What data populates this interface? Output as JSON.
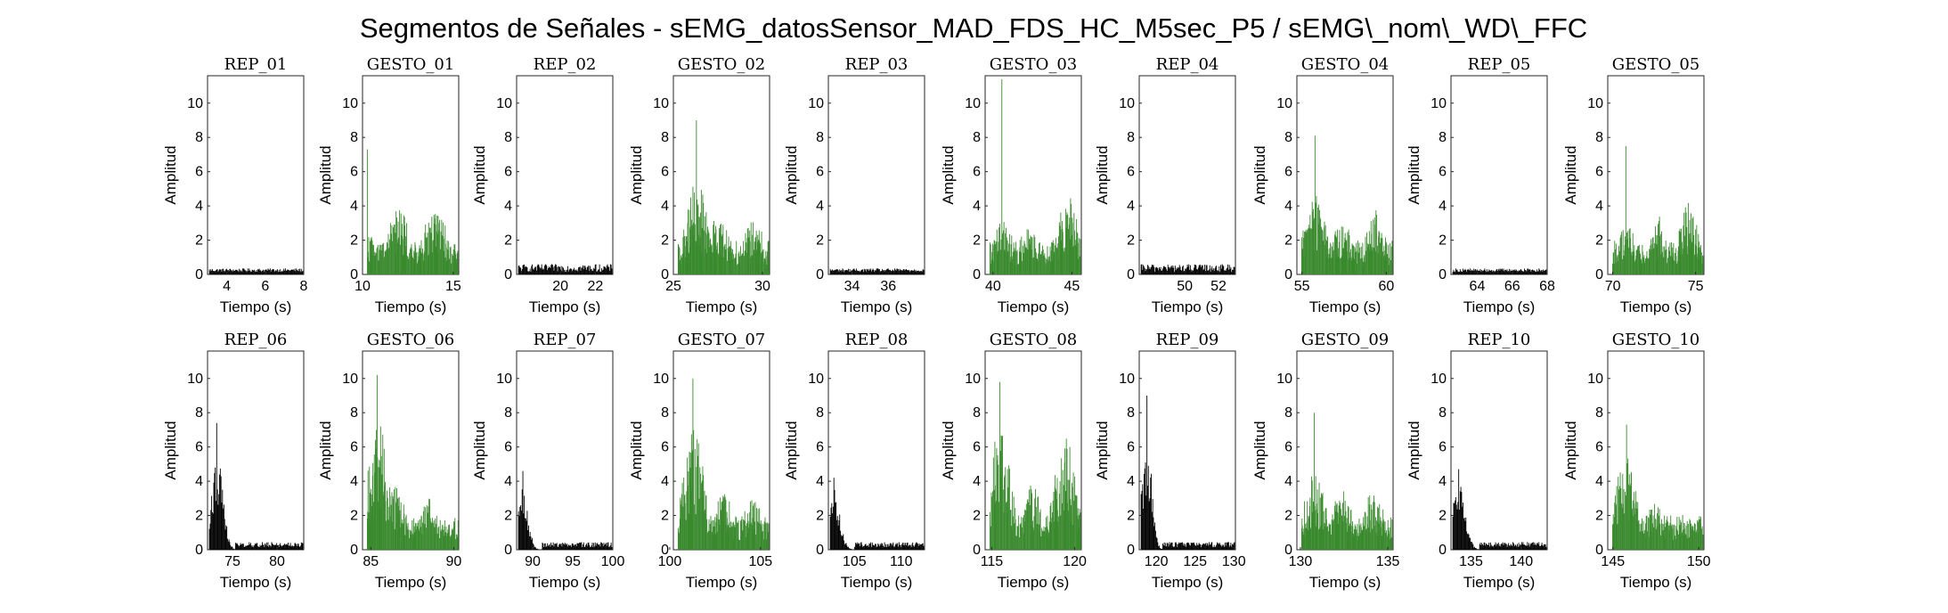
{
  "figure": {
    "title": "Segmentos de Señales - sEMG_datosSensor_MAD_FDS_HC_M5sec_P5 / sEMG\\_nom\\_WD\\_FFC"
  },
  "colors": {
    "rep": "#000000",
    "gesto": "#3a8a2e",
    "axes": "#262626",
    "background": "#ffffff"
  },
  "chart_data": [
    {
      "type": "bar",
      "title": "REP_01",
      "kind": "rep",
      "xlabel": "Tiempo (s)",
      "ylabel": "Amplitud",
      "xlim": [
        3,
        8
      ],
      "ylim": [
        0,
        11.6
      ],
      "xticks": [
        4,
        6,
        8
      ],
      "yticks": [
        0,
        2,
        4,
        6,
        8,
        10
      ],
      "envelope": {
        "bursts": [],
        "base": 0.15,
        "baseMax": 0.35
      }
    },
    {
      "type": "bar",
      "title": "GESTO_01",
      "kind": "gesto",
      "xlabel": "Tiempo (s)",
      "ylabel": "Amplitud",
      "xlim": [
        10,
        15.3
      ],
      "ylim": [
        0,
        11.6
      ],
      "xticks": [
        10,
        15
      ],
      "yticks": [
        0,
        2,
        4,
        6,
        8,
        10
      ],
      "envelope": {
        "bursts": [
          [
            10.3,
            2.0
          ],
          [
            12.0,
            3.2
          ],
          [
            14.0,
            3.4
          ]
        ],
        "base": 0.1,
        "peak": 7.3
      }
    },
    {
      "type": "bar",
      "title": "REP_02",
      "kind": "rep",
      "xlabel": "Tiempo (s)",
      "ylabel": "Amplitud",
      "xlim": [
        17.5,
        23
      ],
      "ylim": [
        0,
        11.6
      ],
      "xticks": [
        20,
        22
      ],
      "yticks": [
        0,
        2,
        4,
        6,
        8,
        10
      ],
      "envelope": {
        "bursts": [],
        "base": 0.15,
        "baseMax": 0.6
      }
    },
    {
      "type": "bar",
      "title": "GESTO_02",
      "kind": "gesto",
      "xlabel": "Tiempo (s)",
      "ylabel": "Amplitud",
      "xlim": [
        25,
        30.4
      ],
      "ylim": [
        0,
        11.6
      ],
      "xticks": [
        25,
        30
      ],
      "yticks": [
        0,
        2,
        4,
        6,
        8,
        10
      ],
      "envelope": {
        "bursts": [
          [
            26.3,
            4.4
          ],
          [
            27.5,
            2.8
          ],
          [
            29.5,
            2.6
          ]
        ],
        "base": 0.1,
        "peak": 9.0
      }
    },
    {
      "type": "bar",
      "title": "REP_03",
      "kind": "rep",
      "xlabel": "Tiempo (s)",
      "ylabel": "Amplitud",
      "xlim": [
        32.7,
        38
      ],
      "ylim": [
        0,
        11.6
      ],
      "xticks": [
        34,
        36
      ],
      "yticks": [
        0,
        2,
        4,
        6,
        8,
        10
      ],
      "envelope": {
        "bursts": [],
        "base": 0.15,
        "baseMax": 0.35
      }
    },
    {
      "type": "bar",
      "title": "GESTO_03",
      "kind": "gesto",
      "xlabel": "Tiempo (s)",
      "ylabel": "Amplitud",
      "xlim": [
        39.5,
        45.6
      ],
      "ylim": [
        0,
        11.6
      ],
      "xticks": [
        40,
        45
      ],
      "yticks": [
        0,
        2,
        4,
        6,
        8,
        10
      ],
      "envelope": {
        "bursts": [
          [
            40.6,
            2.8
          ],
          [
            42.3,
            2.6
          ],
          [
            44.8,
            4.0
          ]
        ],
        "base": 0.1,
        "peak": 11.4
      }
    },
    {
      "type": "bar",
      "title": "REP_04",
      "kind": "rep",
      "xlabel": "Tiempo (s)",
      "ylabel": "Amplitud",
      "xlim": [
        47.3,
        53
      ],
      "ylim": [
        0,
        11.6
      ],
      "xticks": [
        50,
        52
      ],
      "yticks": [
        0,
        2,
        4,
        6,
        8,
        10
      ],
      "envelope": {
        "bursts": [],
        "base": 0.15,
        "baseMax": 0.6
      }
    },
    {
      "type": "bar",
      "title": "GESTO_04",
      "kind": "gesto",
      "xlabel": "Tiempo (s)",
      "ylabel": "Amplitud",
      "xlim": [
        54.7,
        60.4
      ],
      "ylim": [
        0,
        11.6
      ],
      "xticks": [
        55,
        60
      ],
      "yticks": [
        0,
        2,
        4,
        6,
        8,
        10
      ],
      "envelope": {
        "bursts": [
          [
            55.8,
            4.0
          ],
          [
            57.4,
            2.6
          ],
          [
            59.4,
            3.0
          ]
        ],
        "base": 0.1,
        "peak": 8.1
      }
    },
    {
      "type": "bar",
      "title": "REP_05",
      "kind": "rep",
      "xlabel": "Tiempo (s)",
      "ylabel": "Amplitud",
      "xlim": [
        62.5,
        68
      ],
      "ylim": [
        0,
        11.6
      ],
      "xticks": [
        64,
        66,
        68
      ],
      "yticks": [
        0,
        2,
        4,
        6,
        8,
        10
      ],
      "envelope": {
        "bursts": [],
        "base": 0.15,
        "baseMax": 0.35
      }
    },
    {
      "type": "bar",
      "title": "GESTO_05",
      "kind": "gesto",
      "xlabel": "Tiempo (s)",
      "ylabel": "Amplitud",
      "xlim": [
        69.7,
        75.5
      ],
      "ylim": [
        0,
        11.6
      ],
      "xticks": [
        70,
        75
      ],
      "yticks": [
        0,
        2,
        4,
        6,
        8,
        10
      ],
      "envelope": {
        "bursts": [
          [
            70.8,
            2.4
          ],
          [
            72.7,
            2.8
          ],
          [
            74.6,
            3.4
          ]
        ],
        "base": 0.1,
        "peak": 7.5
      }
    },
    {
      "type": "bar",
      "title": "REP_06",
      "kind": "rep",
      "xlabel": "Tiempo (s)",
      "ylabel": "Amplitud",
      "xlim": [
        72.2,
        83
      ],
      "ylim": [
        0,
        11.6
      ],
      "xticks": [
        75,
        80
      ],
      "yticks": [
        0,
        2,
        4,
        6,
        8,
        10
      ],
      "envelope": {
        "bursts": [
          [
            73.3,
            5.2
          ]
        ],
        "burstEnd": 75.3,
        "base": 0.15,
        "baseMax": 0.45,
        "peak": 7.4
      }
    },
    {
      "type": "bar",
      "title": "GESTO_06",
      "kind": "gesto",
      "xlabel": "Tiempo (s)",
      "ylabel": "Amplitud",
      "xlim": [
        84.5,
        90.3
      ],
      "ylim": [
        0,
        11.6
      ],
      "xticks": [
        85,
        90
      ],
      "yticks": [
        0,
        2,
        4,
        6,
        8,
        10
      ],
      "envelope": {
        "bursts": [
          [
            85.4,
            6.2
          ],
          [
            86.5,
            3.0
          ],
          [
            88.5,
            2.4
          ]
        ],
        "base": 0.1,
        "peak": 10.2
      }
    },
    {
      "type": "bar",
      "title": "REP_07",
      "kind": "rep",
      "xlabel": "Tiempo (s)",
      "ylabel": "Amplitud",
      "xlim": [
        88,
        100
      ],
      "ylim": [
        0,
        11.6
      ],
      "xticks": [
        90,
        95,
        100
      ],
      "yticks": [
        0,
        2,
        4,
        6,
        8,
        10
      ],
      "envelope": {
        "bursts": [
          [
            88.8,
            3.4
          ]
        ],
        "burstEnd": 91.2,
        "base": 0.15,
        "baseMax": 0.45,
        "peak": 4.6
      }
    },
    {
      "type": "bar",
      "title": "GESTO_07",
      "kind": "gesto",
      "xlabel": "Tiempo (s)",
      "ylabel": "Amplitud",
      "xlim": [
        100.2,
        105.5
      ],
      "ylim": [
        0,
        11.6
      ],
      "xticks": [
        100,
        105
      ],
      "yticks": [
        0,
        2,
        4,
        6,
        8,
        10
      ],
      "envelope": {
        "bursts": [
          [
            101.3,
            5.6
          ],
          [
            103.0,
            2.6
          ],
          [
            104.6,
            2.4
          ]
        ],
        "base": 0.1,
        "peak": 10.0
      }
    },
    {
      "type": "bar",
      "title": "REP_08",
      "kind": "rep",
      "xlabel": "Tiempo (s)",
      "ylabel": "Amplitud",
      "xlim": [
        102.2,
        112.5
      ],
      "ylim": [
        0,
        11.6
      ],
      "xticks": [
        105,
        110
      ],
      "yticks": [
        0,
        2,
        4,
        6,
        8,
        10
      ],
      "envelope": {
        "bursts": [
          [
            102.8,
            3.2
          ]
        ],
        "burstEnd": 105.0,
        "base": 0.15,
        "baseMax": 0.45,
        "peak": 4.2
      }
    },
    {
      "type": "bar",
      "title": "GESTO_08",
      "kind": "gesto",
      "xlabel": "Tiempo (s)",
      "ylabel": "Amplitud",
      "xlim": [
        114.6,
        120.4
      ],
      "ylim": [
        0,
        11.6
      ],
      "xticks": [
        115,
        120
      ],
      "yticks": [
        0,
        2,
        4,
        6,
        8,
        10
      ],
      "envelope": {
        "bursts": [
          [
            115.5,
            5.8
          ],
          [
            117.4,
            3.2
          ],
          [
            119.4,
            5.4
          ]
        ],
        "base": 0.1,
        "peak": 9.8
      }
    },
    {
      "type": "bar",
      "title": "REP_09",
      "kind": "rep",
      "xlabel": "Tiempo (s)",
      "ylabel": "Amplitud",
      "xlim": [
        117.8,
        130.2
      ],
      "ylim": [
        0,
        11.6
      ],
      "xticks": [
        120,
        125,
        130
      ],
      "yticks": [
        0,
        2,
        4,
        6,
        8,
        10
      ],
      "envelope": {
        "bursts": [
          [
            118.8,
            6.0
          ]
        ],
        "burstEnd": 120.8,
        "base": 0.15,
        "baseMax": 0.45,
        "peak": 9.0
      }
    },
    {
      "type": "bar",
      "title": "GESTO_09",
      "kind": "gesto",
      "xlabel": "Tiempo (s)",
      "ylabel": "Amplitud",
      "xlim": [
        129.8,
        135.3
      ],
      "ylim": [
        0,
        11.6
      ],
      "xticks": [
        130,
        135
      ],
      "yticks": [
        0,
        2,
        4,
        6,
        8,
        10
      ],
      "envelope": {
        "bursts": [
          [
            130.8,
            3.6
          ],
          [
            132.4,
            3.0
          ],
          [
            134.2,
            2.8
          ]
        ],
        "base": 0.1,
        "peak": 8.0
      }
    },
    {
      "type": "bar",
      "title": "REP_10",
      "kind": "rep",
      "xlabel": "Tiempo (s)",
      "ylabel": "Amplitud",
      "xlim": [
        133,
        142.6
      ],
      "ylim": [
        0,
        11.6
      ],
      "xticks": [
        135,
        140
      ],
      "yticks": [
        0,
        2,
        4,
        6,
        8,
        10
      ],
      "envelope": {
        "bursts": [
          [
            133.8,
            3.6
          ]
        ],
        "burstEnd": 135.8,
        "base": 0.15,
        "baseMax": 0.45,
        "peak": 4.7
      }
    },
    {
      "type": "bar",
      "title": "GESTO_10",
      "kind": "gesto",
      "xlabel": "Tiempo (s)",
      "ylabel": "Amplitud",
      "xlim": [
        144.7,
        150.3
      ],
      "ylim": [
        0,
        11.6
      ],
      "xticks": [
        145,
        150
      ],
      "yticks": [
        0,
        2,
        4,
        6,
        8,
        10
      ],
      "envelope": {
        "bursts": [
          [
            145.8,
            4.6
          ],
          [
            147.5,
            2.2
          ],
          [
            149.2,
            1.8
          ]
        ],
        "base": 0.1,
        "peak": 7.3
      }
    }
  ]
}
